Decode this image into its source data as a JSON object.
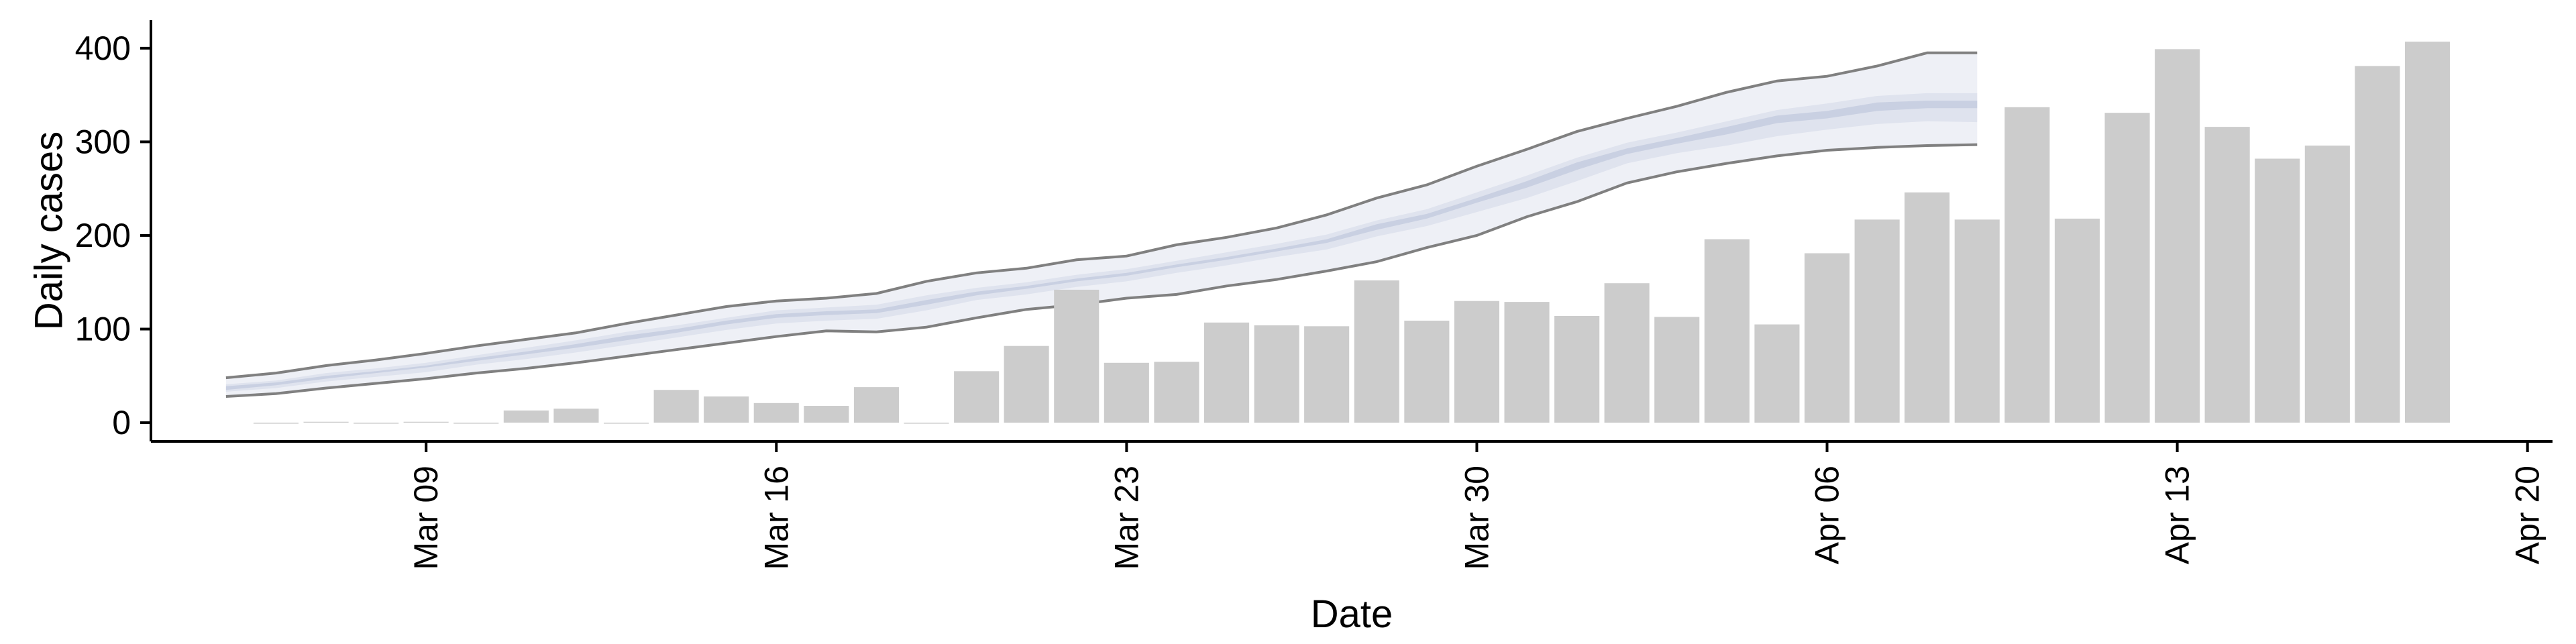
{
  "chart_data": {
    "type": "bar",
    "title": "",
    "xlabel": "Date",
    "ylabel": "Daily cases",
    "ylim": [
      -20,
      430
    ],
    "yticks": [
      0,
      100,
      200,
      300,
      400
    ],
    "xticks": [
      "2020-03-09",
      "2020-03-16",
      "2020-03-23",
      "2020-03-30",
      "2020-04-06",
      "2020-04-13",
      "2020-04-20"
    ],
    "xtick_labels": [
      "Mar 09",
      "Mar 16",
      "Mar 23",
      "Mar 30",
      "Apr 06",
      "Apr 13",
      "Apr 20"
    ],
    "xlim": [
      "2020-03-03 12:00",
      "2020-04-20 12:00"
    ],
    "grid": false,
    "colors": {
      "bars": "#cccccc",
      "band_outer": "#eef0f6",
      "band_mid": "#dfe3ee",
      "band_inner": "#c9d0e2",
      "bound_line": "#808080"
    },
    "bars": {
      "dates": [
        "2020-03-06",
        "2020-03-07",
        "2020-03-08",
        "2020-03-09",
        "2020-03-10",
        "2020-03-11",
        "2020-03-12",
        "2020-03-13",
        "2020-03-14",
        "2020-03-15",
        "2020-03-16",
        "2020-03-17",
        "2020-03-18",
        "2020-03-19",
        "2020-03-20",
        "2020-03-21",
        "2020-03-22",
        "2020-03-23",
        "2020-03-24",
        "2020-03-25",
        "2020-03-26",
        "2020-03-27",
        "2020-03-28",
        "2020-03-29",
        "2020-03-30",
        "2020-03-31",
        "2020-04-01",
        "2020-04-02",
        "2020-04-03",
        "2020-04-04",
        "2020-04-05",
        "2020-04-06",
        "2020-04-07",
        "2020-04-08",
        "2020-04-09",
        "2020-04-10",
        "2020-04-11",
        "2020-04-12",
        "2020-04-13",
        "2020-04-14",
        "2020-04-15",
        "2020-04-16",
        "2020-04-17",
        "2020-04-18"
      ],
      "values": [
        0,
        1,
        0,
        1,
        0,
        13,
        15,
        0,
        35,
        28,
        21,
        18,
        38,
        0,
        55,
        82,
        142,
        64,
        65,
        107,
        104,
        103,
        152,
        109,
        130,
        129,
        114,
        149,
        113,
        196,
        105,
        181,
        217,
        246,
        217,
        337,
        218,
        331,
        399,
        316,
        282,
        296,
        381,
        407
      ]
    },
    "nowcast": {
      "dates": [
        "2020-03-05",
        "2020-03-06",
        "2020-03-07",
        "2020-03-08",
        "2020-03-09",
        "2020-03-10",
        "2020-03-11",
        "2020-03-12",
        "2020-03-13",
        "2020-03-14",
        "2020-03-15",
        "2020-03-16",
        "2020-03-17",
        "2020-03-18",
        "2020-03-19",
        "2020-03-20",
        "2020-03-21",
        "2020-03-22",
        "2020-03-23",
        "2020-03-24",
        "2020-03-25",
        "2020-03-26",
        "2020-03-27",
        "2020-03-28",
        "2020-03-29",
        "2020-03-30",
        "2020-03-31",
        "2020-04-01",
        "2020-04-02",
        "2020-04-03",
        "2020-04-04",
        "2020-04-05",
        "2020-04-06",
        "2020-04-07",
        "2020-04-08",
        "2020-04-09"
      ],
      "lower90": [
        28,
        31,
        37,
        42,
        47,
        53,
        58,
        64,
        71,
        78,
        85,
        92,
        98,
        97,
        102,
        112,
        121,
        126,
        133,
        137,
        146,
        153,
        162,
        172,
        187,
        200,
        220,
        236,
        256,
        268,
        277,
        285,
        291,
        294,
        296,
        297
      ],
      "upper90": [
        48,
        53,
        61,
        67,
        74,
        82,
        89,
        96,
        106,
        115,
        124,
        130,
        133,
        138,
        151,
        160,
        165,
        174,
        178,
        190,
        198,
        208,
        222,
        240,
        254,
        274,
        292,
        311,
        325,
        338,
        353,
        365,
        370,
        381,
        395,
        395
      ],
      "lower50": [
        33,
        37,
        44,
        49,
        54,
        62,
        68,
        75,
        83,
        91,
        99,
        106,
        109,
        111,
        120,
        131,
        137,
        145,
        151,
        160,
        168,
        177,
        185,
        199,
        210,
        225,
        240,
        258,
        277,
        288,
        296,
        306,
        313,
        319,
        322,
        321
      ],
      "upper50": [
        41,
        45,
        53,
        58,
        64,
        72,
        80,
        88,
        97,
        104,
        112,
        120,
        123,
        126,
        136,
        144,
        150,
        158,
        164,
        173,
        182,
        191,
        201,
        216,
        228,
        246,
        264,
        283,
        299,
        310,
        322,
        334,
        341,
        349,
        352,
        352
      ],
      "lower20": [
        35,
        40,
        47,
        53,
        59,
        66,
        73,
        80,
        88,
        96,
        105,
        112,
        115,
        117,
        126,
        136,
        143,
        151,
        157,
        166,
        174,
        183,
        192,
        206,
        218,
        235,
        251,
        270,
        287,
        298,
        308,
        320,
        325,
        333,
        336,
        336
      ],
      "upper20": [
        39,
        43,
        50,
        55,
        61,
        69,
        76,
        84,
        93,
        100,
        109,
        116,
        119,
        121,
        131,
        140,
        146,
        154,
        160,
        169,
        177,
        186,
        196,
        212,
        223,
        240,
        258,
        278,
        293,
        304,
        316,
        328,
        333,
        342,
        344,
        344
      ]
    }
  }
}
